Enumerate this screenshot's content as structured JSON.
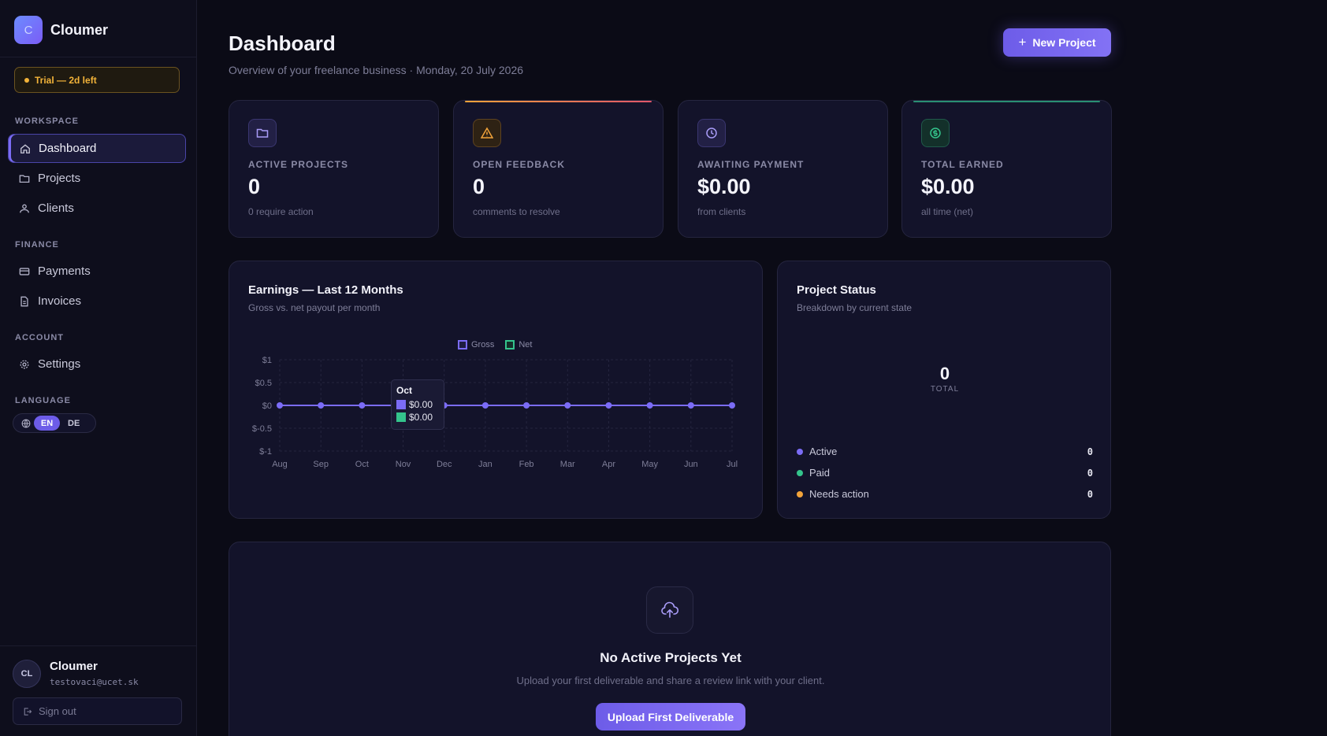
{
  "brand": {
    "logo_letter": "C",
    "name": "Cloumer"
  },
  "trial": {
    "label": "Trial — 2d left",
    "color": "#f2b339"
  },
  "sidebar": {
    "sections": [
      {
        "label": "WORKSPACE"
      },
      {
        "label": "FINANCE"
      },
      {
        "label": "ACCOUNT"
      },
      {
        "label": "LANGUAGE"
      }
    ],
    "items": [
      {
        "label": "Dashboard",
        "icon": "home-icon",
        "active": true
      },
      {
        "label": "Projects",
        "icon": "folder-icon"
      },
      {
        "label": "Clients",
        "icon": "users-icon"
      },
      {
        "label": "Payments",
        "icon": "credit-card-icon"
      },
      {
        "label": "Invoices",
        "icon": "file-icon"
      },
      {
        "label": "Settings",
        "icon": "gear-icon"
      }
    ],
    "language": {
      "options": [
        "EN",
        "DE"
      ],
      "selected": "EN"
    }
  },
  "user": {
    "initials": "CL",
    "name": "Cloumer",
    "email": "testovaci@ucet.sk",
    "signout_label": "Sign out"
  },
  "header": {
    "title": "Dashboard",
    "subtitle": "Overview of your freelance business · Monday, 20 July 2026",
    "new_project_label": "New Project"
  },
  "stats": [
    {
      "label": "ACTIVE PROJECTS",
      "value": "0",
      "sub": "0 require action",
      "icon": "folder-icon",
      "accent": "#8b7cf6"
    },
    {
      "label": "OPEN FEEDBACK",
      "value": "0",
      "sub": "comments to resolve",
      "icon": "warning-icon",
      "accent": "#f2a33a"
    },
    {
      "label": "AWAITING PAYMENT",
      "value": "$0.00",
      "sub": "from clients",
      "icon": "clock-icon",
      "accent": "#8b7cf6"
    },
    {
      "label": "TOTAL EARNED",
      "value": "$0.00",
      "sub": "all time (net)",
      "icon": "dollar-icon",
      "accent": "#34c48c"
    }
  ],
  "earnings": {
    "title": "Earnings — Last 12 Months",
    "subtitle": "Gross vs. net payout per month",
    "tooltip": {
      "month": "Oct",
      "gross": "$0.00",
      "net": "$0.00"
    }
  },
  "chart_data": {
    "type": "line",
    "categories": [
      "Aug",
      "Sep",
      "Oct",
      "Nov",
      "Dec",
      "Jan",
      "Feb",
      "Mar",
      "Apr",
      "May",
      "Jun",
      "Jul"
    ],
    "series": [
      {
        "name": "Gross",
        "values": [
          0,
          0,
          0,
          0,
          0,
          0,
          0,
          0,
          0,
          0,
          0,
          0
        ],
        "color": "#7b6cf6"
      },
      {
        "name": "Net",
        "values": [
          0,
          0,
          0,
          0,
          0,
          0,
          0,
          0,
          0,
          0,
          0,
          0
        ],
        "color": "#34c48c"
      }
    ],
    "y_ticks": [
      "$1",
      "$0.5",
      "$0",
      "$-0.5",
      "$-1"
    ],
    "ylim": [
      -1,
      1
    ],
    "grid": true,
    "legend": "top-center"
  },
  "project_status": {
    "title": "Project Status",
    "subtitle": "Breakdown by current state",
    "total": "0",
    "total_label": "TOTAL",
    "rows": [
      {
        "label": "Active",
        "count": "0",
        "color": "#7b6cf6"
      },
      {
        "label": "Paid",
        "count": "0",
        "color": "#34c48c"
      },
      {
        "label": "Needs action",
        "count": "0",
        "color": "#f2a33a"
      }
    ]
  },
  "empty_state": {
    "icon": "upload-cloud-icon",
    "title": "No Active Projects Yet",
    "subtitle": "Upload your first deliverable and share a review link with your client.",
    "button_label": "Upload First Deliverable"
  }
}
